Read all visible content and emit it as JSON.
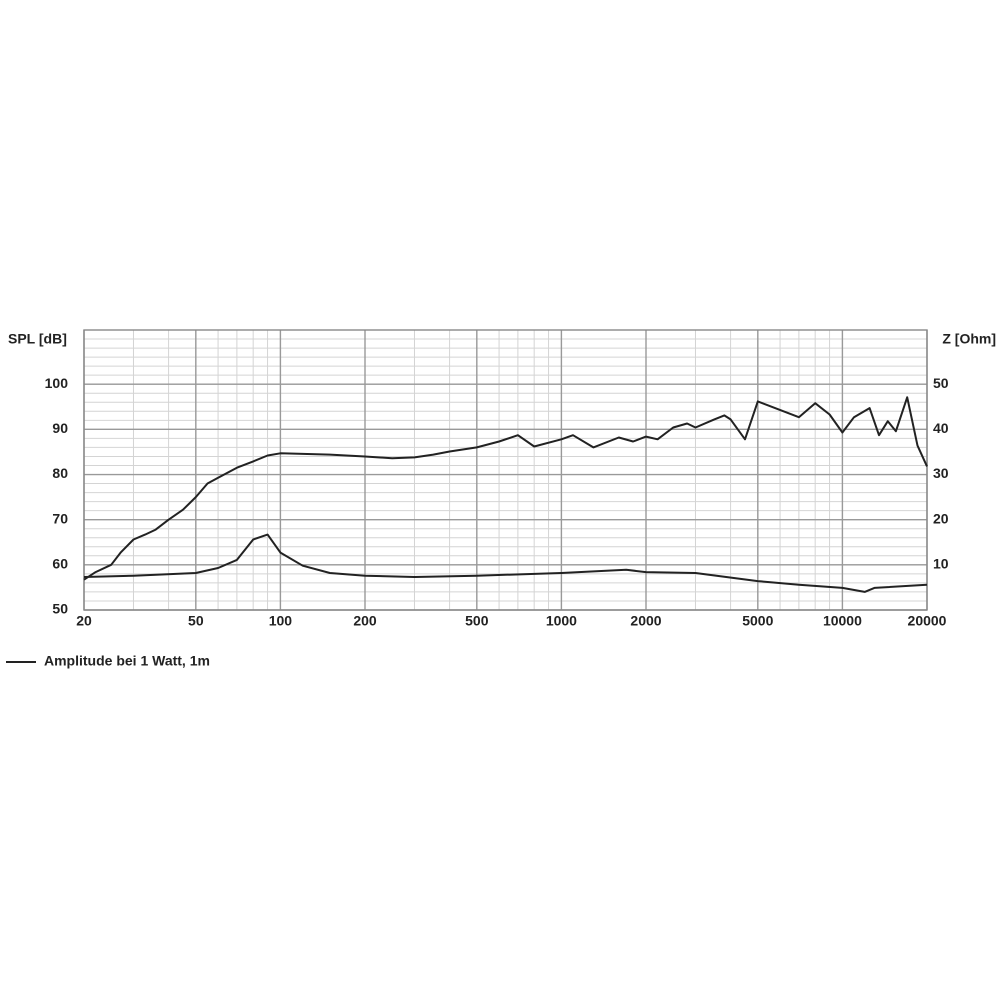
{
  "chart_data": {
    "type": "line",
    "y_label": "SPL [dB]",
    "y2_label": "Z [Ohm]",
    "xlog": true,
    "grid": true,
    "xlim": [
      20,
      20000
    ],
    "xticks": [
      20,
      50,
      100,
      200,
      500,
      1000,
      2000,
      5000,
      10000,
      20000
    ],
    "ylim": [
      50,
      112
    ],
    "yticks": [
      50,
      60,
      70,
      80,
      90,
      100
    ],
    "y2lim": [
      0,
      62
    ],
    "y2ticks": [
      10,
      20,
      30,
      40,
      50
    ],
    "legend": "bottom-left",
    "series": [
      {
        "name": "Amplitude bei 1 Watt, 1m",
        "color": "#222222",
        "x": [
          20,
          22,
          25,
          27,
          30,
          33,
          36,
          40,
          45,
          50,
          55,
          60,
          70,
          80,
          90,
          100,
          150,
          200,
          250,
          300,
          350,
          400,
          500,
          600,
          700,
          800,
          1000,
          1100,
          1300,
          1600,
          1800,
          2000,
          2200,
          2500,
          2800,
          3000,
          3500,
          3800,
          4000,
          4500,
          5000,
          7000,
          8000,
          9000,
          10000,
          11000,
          12500,
          13500,
          14500,
          15500,
          17000,
          18500,
          20000
        ],
        "values": [
          56.7,
          58.4,
          60,
          62.7,
          65.6,
          66.7,
          67.8,
          70,
          72.2,
          75,
          78,
          79.3,
          81.5,
          82.9,
          84.2,
          84.7,
          84.4,
          84,
          83.6,
          83.8,
          84.4,
          85.1,
          86,
          87.3,
          88.7,
          86.2,
          87.8,
          88.7,
          86,
          88.2,
          87.3,
          88.4,
          87.8,
          90.4,
          91.3,
          90.4,
          92.2,
          93.1,
          92.2,
          87.8,
          96.2,
          92.7,
          95.8,
          93.3,
          89.3,
          92.7,
          94.7,
          88.7,
          91.8,
          89.6,
          97.1,
          86.4,
          81.8
        ]
      },
      {
        "color": "#222222",
        "axis": "y2",
        "x": [
          20,
          30,
          50,
          60,
          70,
          80,
          90,
          100,
          120,
          150,
          200,
          300,
          500,
          1000,
          1700,
          2000,
          3000,
          5000,
          7000,
          10000,
          12000,
          13000,
          20000
        ],
        "values": [
          7.3,
          7.6,
          8.2,
          9.3,
          11.1,
          15.6,
          16.7,
          12.7,
          9.8,
          8.2,
          7.6,
          7.3,
          7.6,
          8.2,
          8.9,
          8.4,
          8.2,
          6.4,
          5.6,
          4.9,
          4,
          4.9,
          5.6
        ]
      }
    ]
  }
}
